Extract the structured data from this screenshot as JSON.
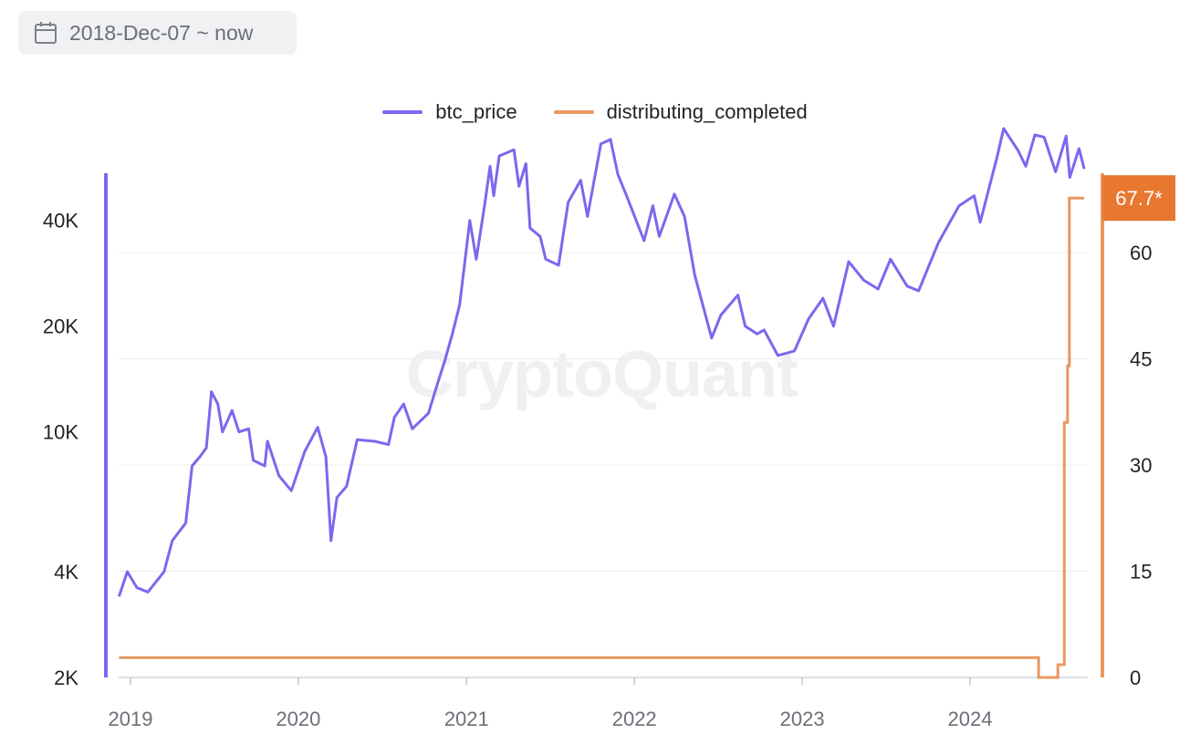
{
  "date_range": {
    "label": "2018-Dec-07 ~ now",
    "icon": "calendar-icon"
  },
  "watermark": "CryptoQuant",
  "colors": {
    "btc_price": "#7b68ee",
    "distributing_completed": "#e89860",
    "badge": "#e87830",
    "grid": "#ececf0"
  },
  "chart_data": {
    "type": "line",
    "xlabel": "",
    "ylabel": "",
    "x_ticks": [
      "2019",
      "2020",
      "2021",
      "2022",
      "2023",
      "2024"
    ],
    "y_left": {
      "scale": "log",
      "ticks": [
        "2K",
        "4K",
        "10K",
        "20K",
        "40K"
      ],
      "tick_values": [
        2000,
        4000,
        10000,
        20000,
        40000
      ],
      "range": [
        2000,
        80000
      ]
    },
    "y_right": {
      "scale": "linear",
      "ticks": [
        "0",
        "15",
        "30",
        "45",
        "60"
      ],
      "tick_values": [
        0,
        15,
        30,
        45,
        60
      ],
      "range": [
        0,
        68
      ]
    },
    "grid": true,
    "legend_position": "top-center",
    "last_value_badge": "67.7*",
    "series": [
      {
        "name": "btc_price",
        "axis": "left",
        "points": [
          [
            "2018-12-07",
            3400
          ],
          [
            "2018-12-25",
            4000
          ],
          [
            "2019-01-15",
            3600
          ],
          [
            "2019-02-08",
            3500
          ],
          [
            "2019-03-15",
            4000
          ],
          [
            "2019-04-02",
            4900
          ],
          [
            "2019-05-01",
            5500
          ],
          [
            "2019-05-15",
            8000
          ],
          [
            "2019-06-01",
            8500
          ],
          [
            "2019-06-15",
            9000
          ],
          [
            "2019-06-26",
            13000
          ],
          [
            "2019-07-10",
            12000
          ],
          [
            "2019-07-20",
            10000
          ],
          [
            "2019-08-10",
            11500
          ],
          [
            "2019-08-25",
            10000
          ],
          [
            "2019-09-15",
            10200
          ],
          [
            "2019-09-25",
            8300
          ],
          [
            "2019-10-20",
            8000
          ],
          [
            "2019-10-26",
            9400
          ],
          [
            "2019-11-20",
            7500
          ],
          [
            "2019-12-17",
            6800
          ],
          [
            "2020-01-15",
            8800
          ],
          [
            "2020-02-12",
            10300
          ],
          [
            "2020-03-01",
            8500
          ],
          [
            "2020-03-12",
            4900
          ],
          [
            "2020-03-25",
            6500
          ],
          [
            "2020-04-15",
            7000
          ],
          [
            "2020-05-08",
            9500
          ],
          [
            "2020-06-15",
            9400
          ],
          [
            "2020-07-15",
            9200
          ],
          [
            "2020-07-28",
            11000
          ],
          [
            "2020-08-17",
            12000
          ],
          [
            "2020-09-05",
            10200
          ],
          [
            "2020-10-10",
            11300
          ],
          [
            "2020-10-28",
            13500
          ],
          [
            "2020-11-15",
            16000
          ],
          [
            "2020-12-01",
            19000
          ],
          [
            "2020-12-17",
            23000
          ],
          [
            "2021-01-08",
            40000
          ],
          [
            "2021-01-22",
            31000
          ],
          [
            "2021-02-10",
            45000
          ],
          [
            "2021-02-21",
            57000
          ],
          [
            "2021-03-01",
            47000
          ],
          [
            "2021-03-13",
            61000
          ],
          [
            "2021-04-14",
            63500
          ],
          [
            "2021-04-25",
            50000
          ],
          [
            "2021-05-10",
            58000
          ],
          [
            "2021-05-19",
            38000
          ],
          [
            "2021-06-10",
            36000
          ],
          [
            "2021-06-22",
            31000
          ],
          [
            "2021-07-20",
            29800
          ],
          [
            "2021-08-10",
            45000
          ],
          [
            "2021-09-06",
            52000
          ],
          [
            "2021-09-21",
            41000
          ],
          [
            "2021-10-20",
            66000
          ],
          [
            "2021-11-10",
            68000
          ],
          [
            "2021-11-26",
            54000
          ],
          [
            "2021-12-15",
            47000
          ],
          [
            "2022-01-22",
            35000
          ],
          [
            "2022-02-10",
            44000
          ],
          [
            "2022-02-24",
            36000
          ],
          [
            "2022-03-29",
            47500
          ],
          [
            "2022-04-20",
            41000
          ],
          [
            "2022-05-12",
            28000
          ],
          [
            "2022-06-18",
            18500
          ],
          [
            "2022-07-08",
            21500
          ],
          [
            "2022-08-14",
            24500
          ],
          [
            "2022-08-30",
            20000
          ],
          [
            "2022-09-25",
            19000
          ],
          [
            "2022-10-10",
            19500
          ],
          [
            "2022-11-09",
            16500
          ],
          [
            "2022-12-15",
            17000
          ],
          [
            "2023-01-15",
            21000
          ],
          [
            "2023-02-15",
            24000
          ],
          [
            "2023-03-10",
            20000
          ],
          [
            "2023-04-12",
            30500
          ],
          [
            "2023-05-15",
            27000
          ],
          [
            "2023-06-15",
            25500
          ],
          [
            "2023-07-12",
            31000
          ],
          [
            "2023-08-17",
            26000
          ],
          [
            "2023-09-11",
            25200
          ],
          [
            "2023-10-24",
            34500
          ],
          [
            "2023-12-08",
            44000
          ],
          [
            "2024-01-10",
            47000
          ],
          [
            "2024-01-23",
            39500
          ],
          [
            "2024-02-28",
            60000
          ],
          [
            "2024-03-14",
            73000
          ],
          [
            "2024-04-15",
            63000
          ],
          [
            "2024-05-01",
            57000
          ],
          [
            "2024-05-21",
            70000
          ],
          [
            "2024-06-10",
            69000
          ],
          [
            "2024-07-05",
            55000
          ],
          [
            "2024-07-28",
            69500
          ],
          [
            "2024-08-05",
            53000
          ],
          [
            "2024-08-25",
            64000
          ],
          [
            "2024-09-01",
            59000
          ],
          [
            "2024-09-05",
            56000
          ]
        ]
      },
      {
        "name": "distributing_completed",
        "axis": "right",
        "points": [
          [
            "2018-12-07",
            2.8
          ],
          [
            "2024-05-28",
            2.8
          ],
          [
            "2024-05-29",
            0
          ],
          [
            "2024-07-09",
            0
          ],
          [
            "2024-07-10",
            1.8
          ],
          [
            "2024-07-23",
            1.8
          ],
          [
            "2024-07-24",
            36
          ],
          [
            "2024-07-30",
            36
          ],
          [
            "2024-07-31",
            44
          ],
          [
            "2024-08-03",
            44
          ],
          [
            "2024-08-04",
            67.7
          ],
          [
            "2024-09-05",
            67.7
          ]
        ]
      }
    ]
  }
}
